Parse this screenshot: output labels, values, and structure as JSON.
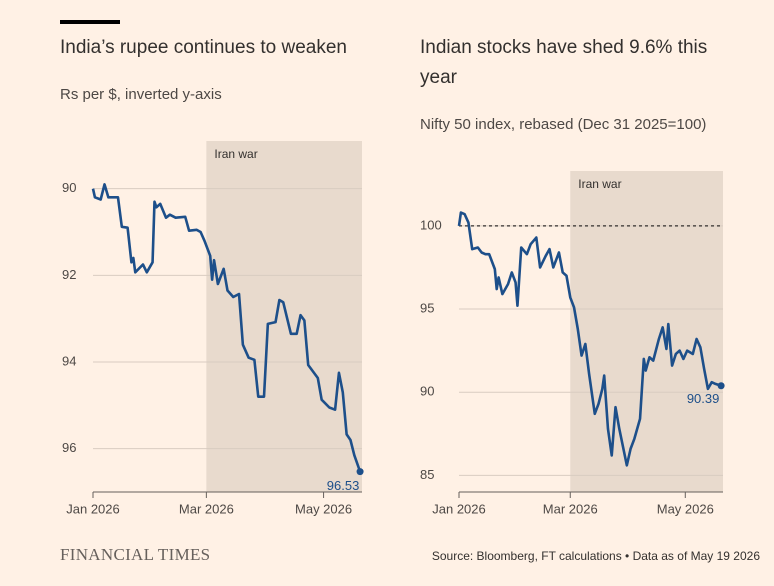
{
  "chart_data": [
    {
      "type": "line",
      "title": "India’s rupee continues to weaken",
      "subtitle": "Rs per $, inverted y-axis",
      "x": [
        0,
        1,
        4,
        6,
        8,
        13,
        15,
        18,
        20,
        21,
        22,
        26,
        28,
        31,
        32,
        33,
        35,
        38,
        40,
        43,
        48,
        50,
        54,
        56,
        58,
        61,
        62,
        63,
        65,
        68,
        70,
        73,
        76,
        78,
        81,
        84,
        86,
        89,
        91,
        95,
        97,
        99,
        103,
        106,
        108,
        110,
        112,
        117,
        119,
        123,
        126,
        128,
        130,
        132,
        134,
        136,
        139
      ],
      "series": [
        {
          "color": "#1d4f8a",
          "values": [
            90.0,
            90.2,
            90.25,
            89.9,
            90.2,
            90.2,
            90.88,
            90.9,
            91.7,
            91.6,
            91.93,
            91.75,
            91.93,
            91.7,
            90.3,
            90.43,
            90.35,
            90.67,
            90.6,
            90.67,
            90.65,
            90.97,
            90.95,
            91.0,
            91.2,
            91.55,
            92.1,
            91.65,
            92.2,
            91.85,
            92.35,
            92.5,
            92.43,
            93.6,
            93.9,
            93.95,
            94.8,
            94.8,
            93.12,
            93.08,
            92.57,
            92.62,
            93.35,
            93.35,
            92.92,
            93.04,
            94.07,
            94.37,
            94.87,
            95.05,
            95.1,
            94.25,
            94.7,
            95.67,
            95.8,
            96.15,
            96.53
          ]
        }
      ],
      "xlim": [
        0,
        140
      ],
      "xticks": [
        {
          "value": 0,
          "label": "Jan 2026"
        },
        {
          "value": 59,
          "label": "Mar 2026"
        },
        {
          "value": 120,
          "label": "May 2026"
        }
      ],
      "ylim": [
        88.9,
        97
      ],
      "y_inverted": true,
      "yticks": [
        90,
        92,
        94,
        96
      ],
      "grid": true,
      "shade": {
        "label": "Iran war",
        "xlim": [
          59,
          140
        ],
        "color": "#e8dacd"
      }
    },
    {
      "type": "line",
      "title": "Indian stocks have shed 9.6% this year",
      "subtitle": "Nifty 50 index, rebased (Dec 31 2025=100)",
      "x": [
        0,
        1,
        3,
        5,
        7,
        10,
        12,
        14,
        16,
        19,
        20,
        21,
        23,
        26,
        28,
        30,
        31,
        33,
        36,
        38,
        41,
        43,
        46,
        48,
        50,
        53,
        55,
        57,
        59,
        61,
        63,
        65,
        67,
        69,
        72,
        74,
        76,
        77,
        79,
        81,
        83,
        85,
        89,
        91,
        93,
        96,
        98,
        99,
        101,
        103,
        106,
        108,
        110,
        111,
        113,
        115,
        117,
        119,
        121,
        124,
        126,
        128,
        130,
        132,
        134,
        136,
        139
      ],
      "series": [
        {
          "color": "#1d4f8a",
          "values": [
            100,
            100.8,
            100.7,
            100.2,
            98.6,
            98.7,
            98.4,
            98.3,
            98.3,
            97.4,
            96.2,
            96.9,
            95.9,
            96.5,
            97.2,
            96.6,
            95.2,
            98.7,
            98.3,
            98.9,
            99.3,
            97.5,
            98.2,
            98.6,
            97.5,
            98.4,
            97.2,
            97.0,
            95.7,
            95.1,
            93.8,
            92.2,
            92.9,
            91.1,
            88.7,
            89.3,
            90.2,
            91.0,
            87.8,
            86.2,
            89.1,
            87.8,
            85.6,
            86.6,
            87.2,
            88.4,
            92.0,
            91.3,
            92.1,
            91.9,
            93.2,
            93.9,
            92.6,
            94.1,
            91.6,
            92.3,
            92.5,
            92.0,
            92.5,
            92.3,
            93.2,
            92.7,
            91.4,
            90.2,
            90.6,
            90.5,
            90.39
          ]
        }
      ],
      "xlim": [
        0,
        140
      ],
      "xticks": [
        {
          "value": 0,
          "label": "Jan 2026"
        },
        {
          "value": 59,
          "label": "Mar 2026"
        },
        {
          "value": 120,
          "label": "May 2026"
        }
      ],
      "ylim": [
        84,
        103.3
      ],
      "y_inverted": false,
      "yticks": [
        85,
        90,
        95,
        100
      ],
      "grid": true,
      "hline": 100,
      "shade": {
        "label": "Iran war",
        "xlim": [
          59,
          140
        ],
        "color": "#e8dacd"
      }
    }
  ],
  "brand": "FINANCIAL TIMES",
  "source": "Source: Bloomberg, FT calculations • Data as of May 19 2026"
}
